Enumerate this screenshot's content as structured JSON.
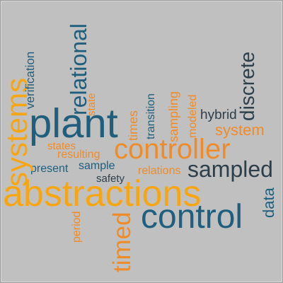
{
  "colors": {
    "background": "#c0c0c0",
    "orange": "#ef8c2a",
    "teal": "#1f5f7d",
    "dark": "#2d3f4a",
    "yellow": "#f7a613"
  },
  "words": {
    "abstractions": "abstractions",
    "plant": "plant",
    "controller": "controller",
    "control": "control",
    "sampled": "sampled",
    "system": "system",
    "hybrid": "hybrid",
    "present": "present",
    "sample": "sample",
    "safety": "safety",
    "relations": "relations",
    "resulting": "resulting",
    "states": "states",
    "systems": "systems",
    "relational": "relational",
    "timed": "timed",
    "discrete": "discrete",
    "data": "data",
    "verification": "verification",
    "state": "state",
    "times": "times",
    "transition": "transition",
    "sampling": "sampling",
    "modeled": "modeled",
    "period": "period"
  }
}
